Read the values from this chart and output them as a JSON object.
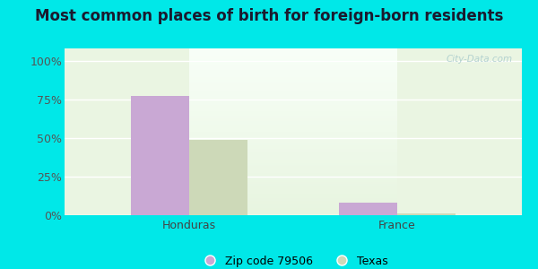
{
  "title": "Most common places of birth for foreign-born residents",
  "categories": [
    "Honduras",
    "France"
  ],
  "series": [
    {
      "name": "Zip code 79506",
      "values": [
        77,
        8
      ],
      "color": "#c9a8d4"
    },
    {
      "name": "Texas",
      "values": [
        49,
        1
      ],
      "color": "#cdd9b8"
    }
  ],
  "yticks": [
    0,
    25,
    50,
    75,
    100
  ],
  "yticklabels": [
    "0%",
    "25%",
    "50%",
    "75%",
    "100%"
  ],
  "ylim": [
    0,
    108
  ],
  "background_outer": "#00e8e8",
  "background_inner_top": "#e8f5e0",
  "background_inner_bottom": "#f0faf0",
  "title_fontsize": 12,
  "axis_label_fontsize": 9,
  "legend_fontsize": 9,
  "bar_width": 0.28,
  "watermark": "City-Data.com"
}
